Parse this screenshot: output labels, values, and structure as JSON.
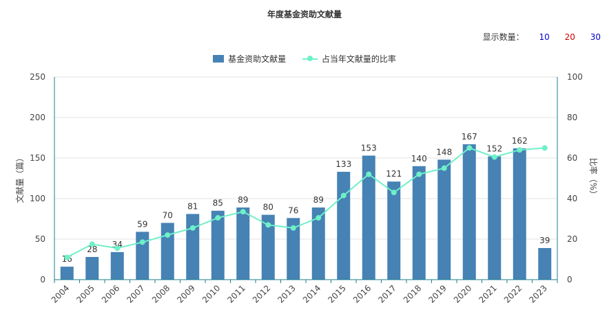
{
  "chart_data": {
    "type": "bar",
    "title": "年度基金资助文献量",
    "categories": [
      "2004",
      "2005",
      "2006",
      "2007",
      "2008",
      "2009",
      "2010",
      "2011",
      "2012",
      "2013",
      "2014",
      "2015",
      "2016",
      "2017",
      "2018",
      "2019",
      "2020",
      "2021",
      "2022",
      "2023"
    ],
    "series": [
      {
        "name": "基金资助文献量",
        "type": "bar",
        "axis": "left",
        "color": "#4682b4",
        "values": [
          16,
          28,
          34,
          59,
          70,
          81,
          85,
          89,
          80,
          76,
          89,
          133,
          153,
          121,
          140,
          148,
          167,
          152,
          162,
          39
        ]
      },
      {
        "name": "占当年文献量的比率",
        "type": "line",
        "axis": "right",
        "color": "#6ef0c8",
        "values": [
          11,
          17.5,
          15.5,
          18.5,
          22,
          25.5,
          30.5,
          33.5,
          27,
          25.5,
          30.5,
          41.5,
          52,
          43,
          52,
          55,
          65,
          60.5,
          64,
          65
        ]
      }
    ],
    "ylabel": "文献量（篇）",
    "y2label": "比率（%）",
    "ylim": [
      0,
      250
    ],
    "y2lim": [
      0,
      100
    ],
    "yticks": [
      0,
      50,
      100,
      150,
      200,
      250
    ],
    "y2ticks": [
      0,
      20,
      40,
      60,
      80,
      100
    ],
    "grid": true,
    "legend_position": "top-center"
  },
  "controls": {
    "display_count_label": "显示数量：",
    "options": [
      {
        "label": "10",
        "color": "#0000cc"
      },
      {
        "label": "20",
        "color": "#cc0000"
      },
      {
        "label": "30",
        "color": "#0000cc"
      }
    ]
  }
}
